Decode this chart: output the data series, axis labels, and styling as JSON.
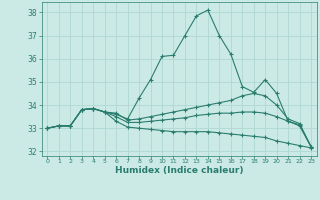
{
  "xlabel": "Humidex (Indice chaleur)",
  "bg_color": "#cceae5",
  "grid_color": "#b0d8d2",
  "line_color": "#2a7d6e",
  "xlim": [
    -0.5,
    23.5
  ],
  "ylim": [
    31.8,
    38.45
  ],
  "xticks": [
    0,
    1,
    2,
    3,
    4,
    5,
    6,
    7,
    8,
    9,
    10,
    11,
    12,
    13,
    14,
    15,
    16,
    17,
    18,
    19,
    20,
    21,
    22,
    23
  ],
  "yticks": [
    32,
    33,
    34,
    35,
    36,
    37,
    38
  ],
  "line1": [
    33.0,
    33.1,
    33.1,
    33.8,
    33.85,
    33.7,
    33.6,
    33.4,
    34.3,
    35.1,
    36.1,
    36.15,
    37.0,
    37.85,
    38.1,
    37.0,
    36.2,
    34.8,
    34.55,
    35.1,
    34.5,
    33.3,
    33.15,
    32.2
  ],
  "line2": [
    33.0,
    33.1,
    33.1,
    33.8,
    33.85,
    33.7,
    33.65,
    33.35,
    33.4,
    33.5,
    33.6,
    33.7,
    33.8,
    33.9,
    34.0,
    34.1,
    34.2,
    34.4,
    34.5,
    34.4,
    34.0,
    33.4,
    33.2,
    32.2
  ],
  "line3": [
    33.0,
    33.1,
    33.1,
    33.8,
    33.85,
    33.7,
    33.5,
    33.25,
    33.25,
    33.3,
    33.35,
    33.4,
    33.45,
    33.55,
    33.6,
    33.65,
    33.65,
    33.7,
    33.7,
    33.65,
    33.5,
    33.3,
    33.1,
    32.2
  ],
  "line4": [
    33.0,
    33.1,
    33.1,
    33.8,
    33.85,
    33.7,
    33.3,
    33.05,
    33.0,
    32.95,
    32.9,
    32.85,
    32.85,
    32.85,
    32.85,
    32.8,
    32.75,
    32.7,
    32.65,
    32.6,
    32.45,
    32.35,
    32.25,
    32.15
  ]
}
